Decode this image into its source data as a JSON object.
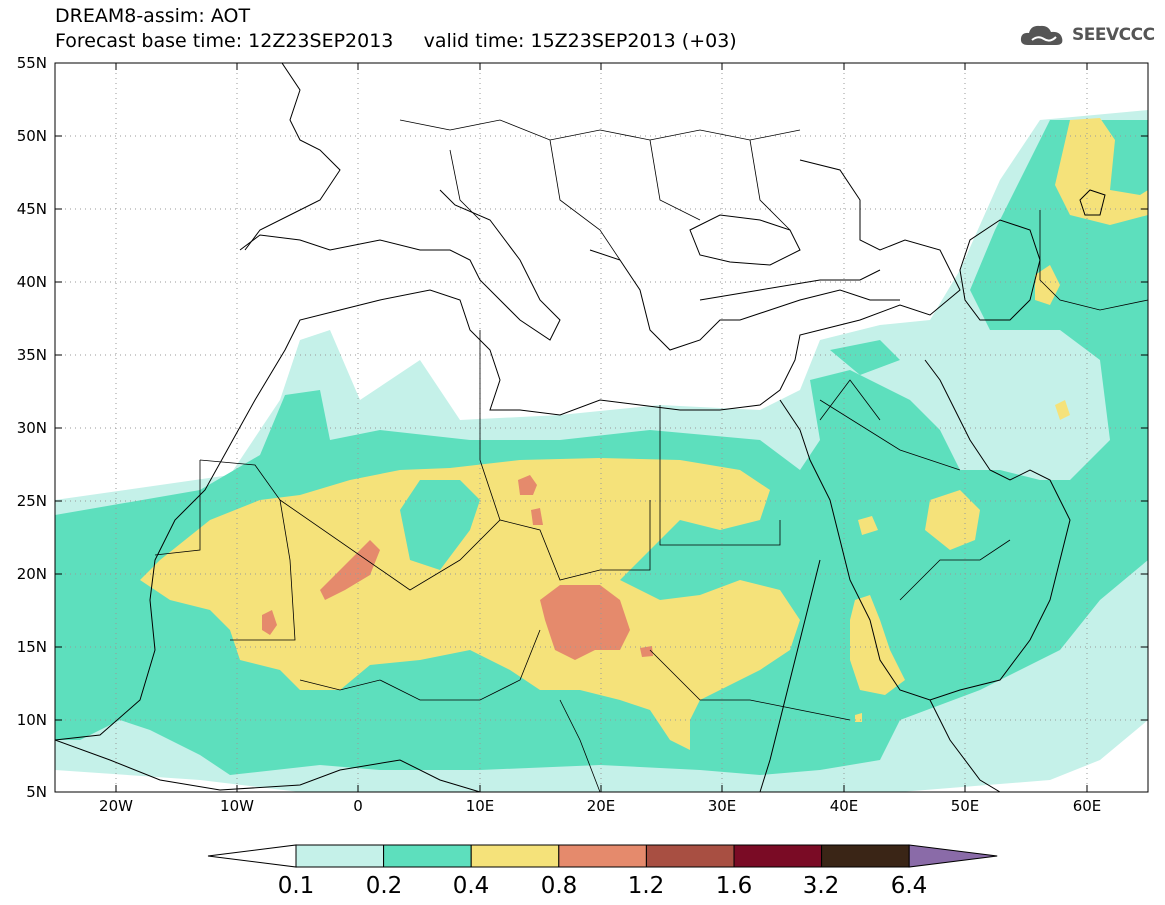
{
  "header": {
    "title": "DREAM8-assim: AOT",
    "subtitle": "Forecast base time: 12Z23SEP2013     valid time: 15Z23SEP2013 (+03)"
  },
  "logo": {
    "text": "SEEVCCC",
    "icon": "cloud-icon"
  },
  "map": {
    "variable": "Aerosol optical thickness (AOT)",
    "lon_range": [
      -25,
      65
    ],
    "lat_range": [
      5,
      55
    ],
    "lon_ticks": [
      "20W",
      "10W",
      "0",
      "10E",
      "20E",
      "30E",
      "40E",
      "50E",
      "60E"
    ],
    "lat_ticks": [
      "55N",
      "50N",
      "45N",
      "40N",
      "35N",
      "30N",
      "25N",
      "20N",
      "15N",
      "10N",
      "5N"
    ],
    "grid": "dotted"
  },
  "colorbar": {
    "levels": [
      "0.1",
      "0.2",
      "0.4",
      "0.8",
      "1.2",
      "1.6",
      "3.2",
      "6.4"
    ],
    "colors": [
      "#ffffff",
      "#c5f1e9",
      "#5ddfbd",
      "#f5e27a",
      "#e58a6c",
      "#a84f42",
      "#7a0b25",
      "#3a2516",
      "#8a6ba8"
    ]
  }
}
